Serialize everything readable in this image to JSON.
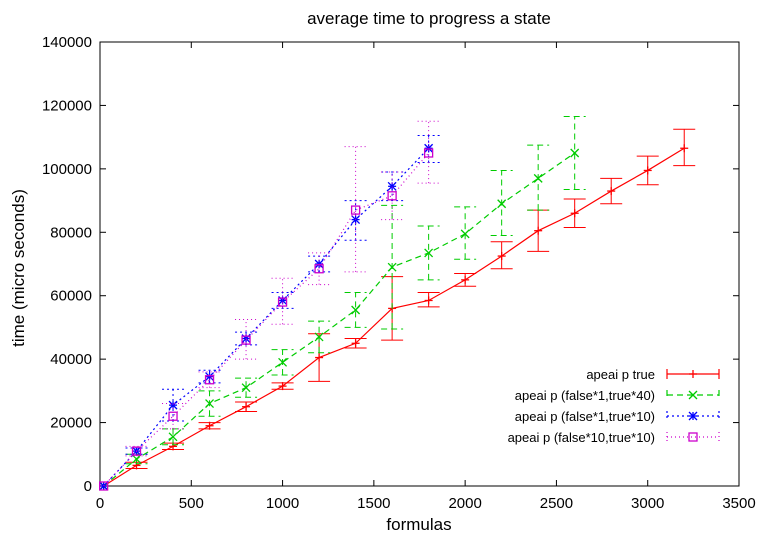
{
  "chart_data": {
    "type": "line",
    "title": "average time to progress a state",
    "xlabel": "formulas",
    "ylabel": "time (micro seconds)",
    "xlim": [
      0,
      3500
    ],
    "ylim": [
      0,
      140000
    ],
    "xticks": [
      0,
      500,
      1000,
      1500,
      2000,
      2500,
      3000,
      3500
    ],
    "yticks": [
      0,
      20000,
      40000,
      60000,
      80000,
      100000,
      120000,
      140000
    ],
    "grid": false,
    "legend_position": "bottom-right",
    "series": [
      {
        "name": "apeai p true",
        "color": "#ff0000",
        "dash": "solid",
        "marker": "plus",
        "points": [
          {
            "x": 20,
            "y": 0,
            "lo": 0,
            "hi": 0
          },
          {
            "x": 200,
            "y": 6500,
            "lo": 5500,
            "hi": 7500
          },
          {
            "x": 400,
            "y": 12500,
            "lo": 11500,
            "hi": 13500
          },
          {
            "x": 600,
            "y": 19000,
            "lo": 18000,
            "hi": 20000
          },
          {
            "x": 800,
            "y": 25000,
            "lo": 23500,
            "hi": 26500
          },
          {
            "x": 1000,
            "y": 31500,
            "lo": 30500,
            "hi": 32500
          },
          {
            "x": 1200,
            "y": 40500,
            "lo": 33000,
            "hi": 48000
          },
          {
            "x": 1400,
            "y": 45000,
            "lo": 43500,
            "hi": 46500
          },
          {
            "x": 1600,
            "y": 56000,
            "lo": 46000,
            "hi": 66000
          },
          {
            "x": 1800,
            "y": 58500,
            "lo": 56500,
            "hi": 61000
          },
          {
            "x": 2000,
            "y": 65000,
            "lo": 63000,
            "hi": 67000
          },
          {
            "x": 2200,
            "y": 72500,
            "lo": 68500,
            "hi": 77000
          },
          {
            "x": 2400,
            "y": 80500,
            "lo": 74000,
            "hi": 87000
          },
          {
            "x": 2600,
            "y": 86000,
            "lo": 81500,
            "hi": 90500
          },
          {
            "x": 2800,
            "y": 93000,
            "lo": 89000,
            "hi": 97000
          },
          {
            "x": 3000,
            "y": 99500,
            "lo": 95000,
            "hi": 104000
          },
          {
            "x": 3200,
            "y": 106500,
            "lo": 101000,
            "hi": 112500
          }
        ]
      },
      {
        "name": "apeai p (false*1,true*40)",
        "color": "#00cc00",
        "dash": "6,4",
        "marker": "cross",
        "points": [
          {
            "x": 20,
            "y": 0,
            "lo": 0,
            "hi": 0
          },
          {
            "x": 200,
            "y": 8500,
            "lo": 7000,
            "hi": 10000
          },
          {
            "x": 400,
            "y": 15500,
            "lo": 13000,
            "hi": 18000
          },
          {
            "x": 600,
            "y": 26000,
            "lo": 22000,
            "hi": 30000
          },
          {
            "x": 800,
            "y": 31000,
            "lo": 28000,
            "hi": 34000
          },
          {
            "x": 1000,
            "y": 39000,
            "lo": 35000,
            "hi": 43000
          },
          {
            "x": 1200,
            "y": 47000,
            "lo": 42000,
            "hi": 52000
          },
          {
            "x": 1400,
            "y": 55500,
            "lo": 50000,
            "hi": 61000
          },
          {
            "x": 1600,
            "y": 69000,
            "lo": 49500,
            "hi": 88500
          },
          {
            "x": 1800,
            "y": 73500,
            "lo": 65000,
            "hi": 82000
          },
          {
            "x": 2000,
            "y": 79500,
            "lo": 71500,
            "hi": 88000
          },
          {
            "x": 2200,
            "y": 89000,
            "lo": 79000,
            "hi": 99500
          },
          {
            "x": 2400,
            "y": 97000,
            "lo": 87000,
            "hi": 107500
          },
          {
            "x": 2600,
            "y": 105000,
            "lo": 93500,
            "hi": 116500
          }
        ]
      },
      {
        "name": "apeai p (false*1,true*10)",
        "color": "#0000ff",
        "dash": "2,3",
        "marker": "star",
        "points": [
          {
            "x": 20,
            "y": 0,
            "lo": 0,
            "hi": 0
          },
          {
            "x": 200,
            "y": 11000,
            "lo": 10000,
            "hi": 12000
          },
          {
            "x": 400,
            "y": 25500,
            "lo": 20500,
            "hi": 30500
          },
          {
            "x": 600,
            "y": 34500,
            "lo": 32500,
            "hi": 36500
          },
          {
            "x": 800,
            "y": 46500,
            "lo": 44500,
            "hi": 48500
          },
          {
            "x": 1000,
            "y": 58500,
            "lo": 56000,
            "hi": 61000
          },
          {
            "x": 1200,
            "y": 70000,
            "lo": 67500,
            "hi": 72500
          },
          {
            "x": 1400,
            "y": 84000,
            "lo": 77500,
            "hi": 90000
          },
          {
            "x": 1600,
            "y": 94500,
            "lo": 90000,
            "hi": 99000
          },
          {
            "x": 1800,
            "y": 106500,
            "lo": 102000,
            "hi": 110500
          }
        ]
      },
      {
        "name": "apeai p (false*10,true*10)",
        "color": "#cc00cc",
        "dash": "1,3",
        "marker": "square",
        "points": [
          {
            "x": 20,
            "y": 0,
            "lo": 0,
            "hi": 0
          },
          {
            "x": 200,
            "y": 11000,
            "lo": 9500,
            "hi": 12500
          },
          {
            "x": 400,
            "y": 22000,
            "lo": 18000,
            "hi": 26000
          },
          {
            "x": 600,
            "y": 33500,
            "lo": 31000,
            "hi": 36000
          },
          {
            "x": 800,
            "y": 46000,
            "lo": 40000,
            "hi": 52500
          },
          {
            "x": 1000,
            "y": 58000,
            "lo": 51000,
            "hi": 65500
          },
          {
            "x": 1200,
            "y": 68500,
            "lo": 63500,
            "hi": 73500
          },
          {
            "x": 1400,
            "y": 87000,
            "lo": 67500,
            "hi": 107000
          },
          {
            "x": 1600,
            "y": 91500,
            "lo": 84000,
            "hi": 99000
          },
          {
            "x": 1800,
            "y": 105000,
            "lo": 95500,
            "hi": 115000
          }
        ]
      }
    ]
  }
}
